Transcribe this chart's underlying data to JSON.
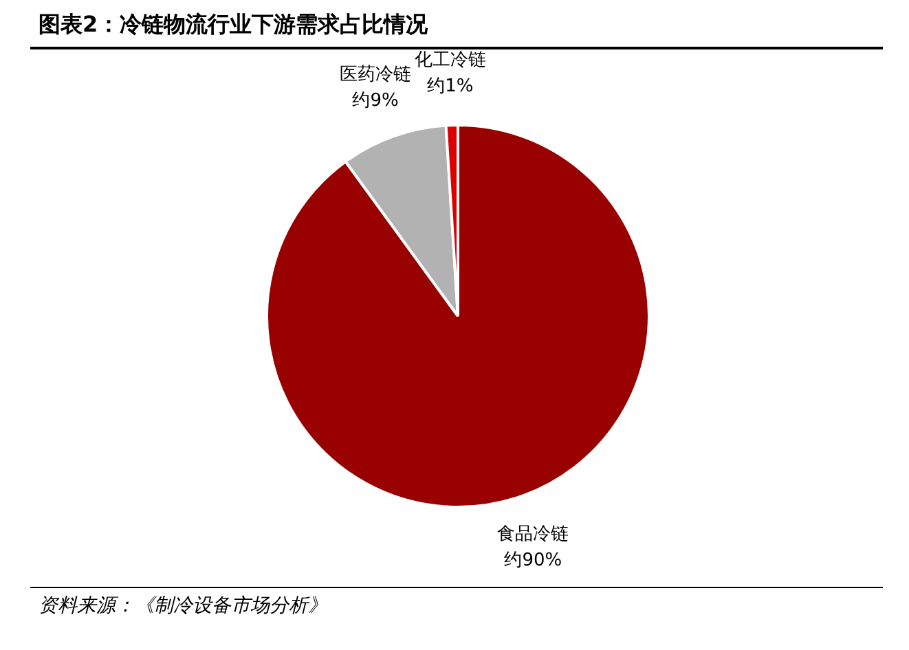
{
  "chart_data": {
    "type": "pie",
    "title": "图表2：冷链物流行业下游需求占比情况",
    "categories": [
      "食品冷链",
      "医药冷链",
      "化工冷链"
    ],
    "values": [
      90,
      9,
      1
    ],
    "colors": [
      "#990000",
      "#b2b2b2",
      "#dd0000"
    ],
    "value_labels": [
      "约90%",
      "约9%",
      "约1%"
    ],
    "legend": false,
    "annotations": [
      "资料来源：《制冷设备市场分析》"
    ]
  }
}
